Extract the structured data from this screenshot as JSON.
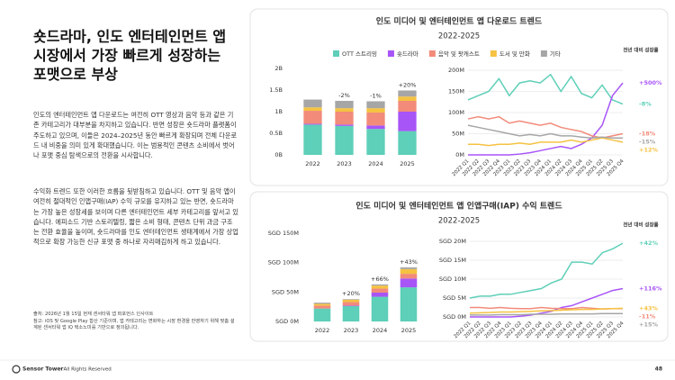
{
  "slide": {
    "title": "숏드라마, 인도 엔터테인먼트 앱 시장에서 가장 빠르게 성장하는 포맷으로 부상",
    "paragraphs": [
      "인도의 엔터테인먼트 앱 다운로드는 여전히 OTT 영상과 음악 등과 같은 기존 카테고리가 대부분을 차지하고 있습니다. 반면 성장은 숏드라마 플랫폼이 주도하고 있으며, 이들은 2024–2025년 동안 빠르게 확장되며 전체 다운로드 내 비중을 의미 있게 확대했습니다. 이는 범용적인 콘텐츠 소비에서 벗어나 포맷 중심 탐색으로의 전환을 시사합니다.",
      "수익화 트렌드 또한 이러한 흐름을 뒷받침하고 있습니다. OTT 및 음악 앱이 여전히 절대적인 인앱구매(IAP) 수익 규모를 유지하고 있는 반면, 숏드라마는 가장 높은 성장세를 보이며 다른 엔터테인먼트 세부 카테고리를 앞서고 있습니다. 에피소드 기반 스토리텔링, 짧은 소비 형태, 콘텐츠 단위 과금 구조는 전환 효율을 높이며, 숏드라마를 인도 엔터테인먼트 생태계에서 가장 상업적으로 확장 가능한 신규 포맷 중 하나로 자리매김하게 하고 있습니다."
    ],
    "notes": [
      "출처: 2026년 1월 15일 현재 센서타워 앱 퍼포먼스 인사이트",
      "참고: iOS 및 Google Play 합산 기준이며, 앱 카테고리는 변화하는 시장 환경을 반영하기 위해 맞춤 설계된 센서타워 앱 IQ 택소노미를 기반으로 정의됩니다."
    ],
    "footer": {
      "brand": "Sensor Tower",
      "rights": "· All Rights Reserved",
      "page": "48"
    }
  },
  "panels": [
    {
      "title": "인도 미디어 및 엔터테인먼트 앱 다운로드 트렌드",
      "subtitle": "2022-2025"
    },
    {
      "title": "인도 미디어 및 엔터테인먼트 앱 인앱구매(IAP) 수익 트렌드",
      "subtitle": "2022-2025"
    }
  ],
  "chart_data": [
    {
      "type": "bar",
      "stacked": true,
      "categories": [
        "2022",
        "2023",
        "2024",
        "2025"
      ],
      "ylim": [
        0,
        2
      ],
      "yticks": [
        {
          "value": 0,
          "label": "0B"
        },
        {
          "value": 0.5,
          "label": "0.5B"
        },
        {
          "value": 1,
          "label": "1B"
        },
        {
          "value": 1.5,
          "label": "1.5B"
        },
        {
          "value": 2,
          "label": "2B"
        }
      ],
      "series": [
        {
          "name": "OTT 스트리밍",
          "color": "#5ecfb8",
          "values": [
            0.7,
            0.67,
            0.6,
            0.55
          ]
        },
        {
          "name": "숏드라마",
          "color": "#a855f7",
          "values": [
            0.02,
            0.03,
            0.08,
            0.45
          ]
        },
        {
          "name": "음악 및 팟캐스트",
          "color": "#f28b7a",
          "values": [
            0.3,
            0.3,
            0.3,
            0.25
          ]
        },
        {
          "name": "도서 및 만화",
          "color": "#f5c242",
          "values": [
            0.08,
            0.08,
            0.1,
            0.1
          ]
        },
        {
          "name": "기타",
          "color": "#a6a6a6",
          "values": [
            0.18,
            0.17,
            0.16,
            0.14
          ]
        }
      ],
      "annotations": [
        {
          "category": "2023",
          "text": "-2%"
        },
        {
          "category": "2024",
          "text": "-1%"
        },
        {
          "category": "2025",
          "text": "+20%"
        }
      ]
    },
    {
      "type": "line",
      "categories": [
        "2022 Q1",
        "2022 Q2",
        "2022 Q3",
        "2022 Q4",
        "2023 Q1",
        "2023 Q2",
        "2023 Q3",
        "2023 Q4",
        "2024 Q1",
        "2024 Q2",
        "2024 Q3",
        "2024 Q4",
        "2025 Q1",
        "2025 Q2",
        "2025 Q3",
        "2025 Q4"
      ],
      "ylim": [
        0,
        200
      ],
      "yticks": [
        {
          "value": 0,
          "label": "0M"
        },
        {
          "value": 50,
          "label": "50M"
        },
        {
          "value": 100,
          "label": "100M"
        },
        {
          "value": 150,
          "label": "150M"
        },
        {
          "value": 200,
          "label": "200M"
        }
      ],
      "grid": true,
      "growth_title": "전년 대비 성장률",
      "series": [
        {
          "color": "#5ecfb8",
          "growth_label": "-8%",
          "values": [
            130,
            140,
            150,
            180,
            140,
            170,
            175,
            170,
            190,
            150,
            185,
            145,
            135,
            165,
            130,
            120
          ]
        },
        {
          "color": "#a855f7",
          "growth_label": "+500%",
          "values": [
            0,
            0,
            0,
            0,
            0,
            2,
            5,
            10,
            15,
            20,
            15,
            25,
            40,
            70,
            140,
            170
          ]
        },
        {
          "color": "#f28b7a",
          "growth_label": "-18%",
          "values": [
            85,
            90,
            85,
            90,
            75,
            80,
            75,
            70,
            75,
            65,
            60,
            55,
            45,
            40,
            45,
            50
          ]
        },
        {
          "color": "#f5c242",
          "growth_label": "+12%",
          "values": [
            25,
            25,
            22,
            25,
            25,
            28,
            25,
            30,
            30,
            30,
            35,
            30,
            35,
            40,
            35,
            30
          ]
        },
        {
          "color": "#a6a6a6",
          "growth_label": "-15%",
          "values": [
            70,
            65,
            60,
            55,
            50,
            45,
            48,
            45,
            50,
            45,
            45,
            42,
            40,
            42,
            40,
            40
          ]
        }
      ]
    },
    {
      "type": "bar",
      "stacked": true,
      "categories": [
        "2022",
        "2023",
        "2024",
        "2025"
      ],
      "ylim": [
        0,
        150
      ],
      "yticks": [
        {
          "value": 0,
          "label": "SGD 0M"
        },
        {
          "value": 50,
          "label": "SGD 50M"
        },
        {
          "value": 100,
          "label": "SGD 100M"
        },
        {
          "value": 150,
          "label": "SGD 150M"
        }
      ],
      "series": [
        {
          "color": "#5ecfb8",
          "values": [
            22,
            26,
            42,
            58
          ]
        },
        {
          "color": "#a855f7",
          "values": [
            0,
            1,
            7,
            15
          ]
        },
        {
          "color": "#f28b7a",
          "values": [
            5,
            6,
            7,
            8
          ]
        },
        {
          "color": "#f5c242",
          "values": [
            3,
            4,
            5,
            8
          ]
        },
        {
          "color": "#a6a6a6",
          "values": [
            2,
            1,
            2,
            3
          ]
        }
      ],
      "annotations": [
        {
          "category": "2023",
          "text": "+20%"
        },
        {
          "category": "2024",
          "text": "+66%"
        },
        {
          "category": "2025",
          "text": "+43%"
        }
      ]
    },
    {
      "type": "line",
      "categories": [
        "2022 Q1",
        "2022 Q2",
        "2022 Q3",
        "2022 Q4",
        "2023 Q1",
        "2023 Q2",
        "2023 Q3",
        "2023 Q4",
        "2024 Q1",
        "2024 Q2",
        "2024 Q3",
        "2024 Q4",
        "2025 Q1",
        "2025 Q2",
        "2025 Q3",
        "2025 Q4"
      ],
      "ylim": [
        0,
        20
      ],
      "yticks": [
        {
          "value": 0,
          "label": "SGD 0M"
        },
        {
          "value": 5,
          "label": "SGD 5M"
        },
        {
          "value": 10,
          "label": "SGD 10M"
        },
        {
          "value": 15,
          "label": "SGD 15M"
        },
        {
          "value": 20,
          "label": "SGD 20M"
        }
      ],
      "grid": true,
      "growth_title": "전년 대비 성장률",
      "series": [
        {
          "color": "#5ecfb8",
          "growth_label": "+42%",
          "values": [
            5,
            5.5,
            5.5,
            6,
            6,
            6.5,
            7,
            7.5,
            9,
            10,
            14.5,
            14.5,
            14,
            17,
            18,
            19.5
          ]
        },
        {
          "color": "#a855f7",
          "growth_label": "+116%",
          "values": [
            0,
            0,
            0,
            0,
            0,
            0.2,
            0.5,
            1,
            1.5,
            2.5,
            3,
            4,
            5,
            6,
            7,
            7.5
          ]
        },
        {
          "color": "#f28b7a",
          "growth_label": "-11%",
          "values": [
            2.5,
            2.5,
            2.3,
            2.5,
            2.3,
            2.2,
            2.2,
            2.5,
            2.3,
            2.2,
            2.2,
            2.5,
            2.3,
            2.1,
            2.2,
            2.2
          ]
        },
        {
          "color": "#f5c242",
          "growth_label": "+43%",
          "values": [
            1,
            1.1,
            1.2,
            1.3,
            1.3,
            1.4,
            1.5,
            1.6,
            1.7,
            1.8,
            1.9,
            2,
            2,
            2.1,
            2.2,
            2.3
          ]
        },
        {
          "color": "#a6a6a6",
          "growth_label": "+15%",
          "values": [
            0.5,
            0.5,
            0.5,
            0.6,
            0.6,
            0.6,
            0.7,
            0.7,
            0.7,
            0.8,
            0.8,
            0.8,
            0.8,
            0.9,
            0.9,
            0.9
          ]
        }
      ]
    }
  ]
}
